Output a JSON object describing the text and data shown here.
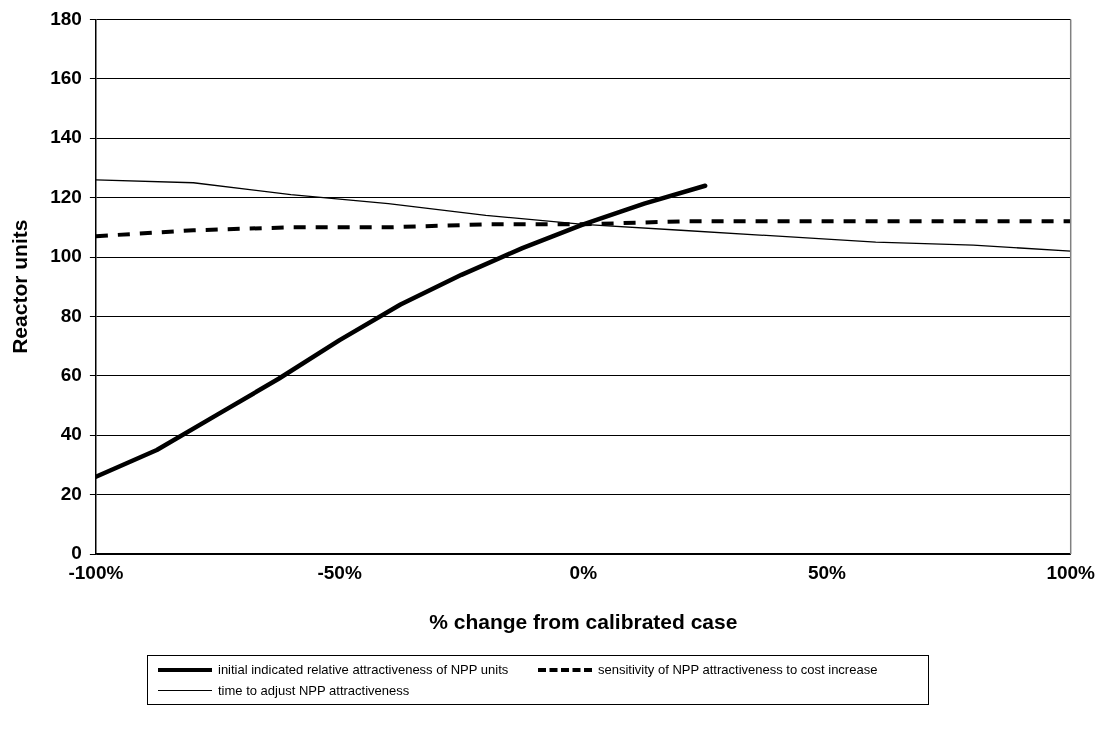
{
  "chart_data": {
    "type": "line",
    "xlabel": "% change from calibrated case",
    "ylabel": "Reactor units",
    "xlim": [
      -100,
      100
    ],
    "xticks": [
      {
        "value": -100,
        "label": "-100%"
      },
      {
        "value": -50,
        "label": "-50%"
      },
      {
        "value": 0,
        "label": "0%"
      },
      {
        "value": 50,
        "label": "50%"
      },
      {
        "value": 100,
        "label": "100%"
      }
    ],
    "ylim": [
      0,
      180
    ],
    "yticks": [
      0,
      20,
      40,
      60,
      80,
      100,
      120,
      140,
      160,
      180
    ],
    "grid": "y",
    "legend": "bottom",
    "marker": "none",
    "series": [
      {
        "name": "initial indicated relative attractiveness of NPP units",
        "color": "#000000",
        "line_style": "solid",
        "x": [
          -100,
          -87.5,
          -75,
          -62.5,
          -50,
          -37.5,
          -25,
          -12.5,
          0,
          12.5,
          25
        ],
        "values": [
          26,
          35,
          47,
          59,
          72,
          84,
          94,
          103,
          111,
          118,
          124
        ]
      },
      {
        "name": "sensitivity of NPP attractiveness to cost increase",
        "color": "#000000",
        "line_style": "dashed",
        "x": [
          -100,
          -80,
          -60,
          -40,
          -20,
          0,
          20,
          40,
          60,
          80,
          100
        ],
        "values": [
          107,
          109,
          110,
          110,
          111,
          111,
          112,
          112,
          112,
          112,
          112
        ]
      },
      {
        "name": "time to adjust NPP attractiveness",
        "color": "#000000",
        "line_style": "solid",
        "x": [
          -100,
          -80,
          -60,
          -40,
          -20,
          0,
          20,
          40,
          60,
          80,
          100
        ],
        "values": [
          126,
          125,
          121,
          118,
          114,
          111,
          109,
          107,
          105,
          104,
          102
        ]
      }
    ]
  }
}
